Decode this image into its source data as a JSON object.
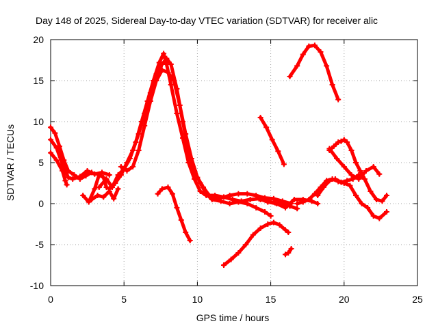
{
  "chart_data": {
    "type": "line",
    "title": "Day 148 of 2025, Sidereal Day-to-day VTEC variation (SDTVAR) for receiver alic",
    "xlabel": "GPS time / hours",
    "ylabel": "SDTVAR / TECUs",
    "xlim": [
      0,
      25
    ],
    "ylim": [
      -10,
      20
    ],
    "xticks": [
      0,
      5,
      10,
      15,
      20,
      25
    ],
    "yticks": [
      -10,
      -5,
      0,
      5,
      10,
      15,
      20
    ],
    "grid": true,
    "color": "#ff0000",
    "series": [
      {
        "x": [
          0.0,
          0.3,
          0.6,
          0.9,
          1.2,
          1.6,
          2.0,
          2.4,
          2.8
        ],
        "y": [
          9.3,
          8.6,
          7.0,
          5.3,
          4.0,
          3.5,
          3.0,
          3.4,
          3.8
        ]
      },
      {
        "x": [
          0.0,
          0.4,
          0.8,
          1.0,
          1.1
        ],
        "y": [
          6.2,
          5.3,
          4.0,
          2.8,
          2.3
        ]
      },
      {
        "x": [
          0.0,
          0.4,
          0.8,
          1.2,
          1.5,
          2.0,
          2.5,
          3.0,
          3.5,
          4.0
        ],
        "y": [
          7.8,
          6.8,
          4.8,
          3.2,
          3.0,
          3.3,
          4.0,
          3.6,
          3.8,
          3.5
        ]
      },
      {
        "x": [
          2.2,
          2.6,
          3.0,
          3.3,
          3.6,
          3.8
        ],
        "y": [
          1.0,
          0.2,
          1.8,
          3.5,
          3.2,
          2.0
        ]
      },
      {
        "x": [
          2.8,
          3.2,
          3.6,
          4.0,
          4.3,
          4.6
        ],
        "y": [
          0.5,
          1.0,
          0.8,
          1.5,
          0.6,
          1.8
        ]
      },
      {
        "x": [
          3.3,
          3.8,
          4.2,
          4.6,
          5.0,
          5.4,
          5.8,
          6.2,
          6.6,
          7.0,
          7.4,
          7.7,
          7.9,
          8.2,
          8.6,
          9.0,
          9.4,
          9.8,
          10.2,
          10.6,
          11.0,
          11.6,
          12.2,
          12.8,
          13.4,
          14.0,
          14.6,
          15.2,
          15.8,
          16.4
        ],
        "y": [
          2.0,
          3.0,
          2.0,
          3.5,
          4.2,
          5.5,
          7.5,
          10.0,
          12.5,
          15.0,
          17.2,
          18.3,
          17.0,
          14.5,
          11.0,
          8.0,
          5.0,
          3.0,
          1.5,
          1.0,
          0.8,
          0.7,
          1.0,
          1.2,
          1.2,
          1.0,
          0.7,
          0.6,
          0.3,
          0.0
        ]
      },
      {
        "x": [
          4.8,
          5.2,
          5.6,
          6.0,
          6.4,
          6.8,
          7.2,
          7.6,
          8.0,
          8.4,
          8.8,
          9.2,
          9.6,
          10.0,
          10.4,
          10.8,
          11.2,
          11.8,
          12.4,
          13.0,
          13.6,
          14.2,
          14.8,
          15.4,
          16.0,
          16.6,
          17.2,
          17.8,
          18.2
        ],
        "y": [
          4.5,
          4.0,
          4.5,
          6.5,
          9.5,
          12.5,
          15.0,
          16.3,
          16.0,
          15.0,
          12.0,
          8.5,
          5.5,
          3.2,
          2.0,
          1.0,
          1.0,
          0.8,
          0.5,
          0.3,
          0.5,
          0.6,
          0.2,
          0.0,
          -0.5,
          0.5,
          0.5,
          0.3,
          0.0
        ]
      },
      {
        "x": [
          4.0,
          4.4,
          4.8,
          5.2,
          5.6,
          6.0,
          6.4,
          6.8,
          7.2,
          7.6,
          7.9,
          8.2,
          8.6,
          9.0,
          9.4,
          9.8,
          10.2,
          10.6,
          11.0,
          11.6,
          12.2,
          12.8,
          13.4,
          14.0,
          14.6,
          15.0
        ],
        "y": [
          1.8,
          2.5,
          3.5,
          5.0,
          6.5,
          8.5,
          11.0,
          13.5,
          15.8,
          17.0,
          17.7,
          17.0,
          14.0,
          10.0,
          6.5,
          4.0,
          2.5,
          1.2,
          0.5,
          0.3,
          0.0,
          0.2,
          0.0,
          -0.5,
          -1.0,
          -1.5
        ]
      },
      {
        "x": [
          7.3,
          7.6,
          8.0,
          8.3,
          8.6,
          8.9,
          9.2,
          9.5
        ],
        "y": [
          1.2,
          1.8,
          2.0,
          1.2,
          -0.5,
          -2.0,
          -3.5,
          -4.5
        ]
      },
      {
        "x": [
          11.8,
          12.3,
          12.8,
          13.3,
          13.8,
          14.3,
          14.8,
          15.2,
          15.6,
          16.0,
          16.2
        ],
        "y": [
          -7.5,
          -6.8,
          -6.0,
          -5.0,
          -3.8,
          -3.0,
          -2.5,
          -2.3,
          -2.6,
          -3.2,
          -3.5
        ]
      },
      {
        "x": [
          14.3,
          14.7,
          15.1,
          15.5,
          15.9
        ],
        "y": [
          10.5,
          9.3,
          7.8,
          6.4,
          4.8
        ]
      },
      {
        "x": [
          16.0,
          16.2,
          16.4
        ],
        "y": [
          -6.2,
          -6.0,
          -5.5
        ]
      },
      {
        "x": [
          16.3,
          16.8,
          17.2,
          17.6,
          18.0,
          18.4,
          18.8,
          19.2,
          19.6
        ],
        "y": [
          15.5,
          16.8,
          18.2,
          19.2,
          19.3,
          18.5,
          16.8,
          14.5,
          12.7
        ]
      },
      {
        "x": [
          16.8,
          17.2,
          17.6,
          18.0,
          18.4,
          18.8,
          19.2,
          19.6,
          20.0,
          20.4,
          20.8,
          21.2,
          21.6,
          22.0,
          22.4,
          22.9
        ],
        "y": [
          0.0,
          0.2,
          0.5,
          1.2,
          2.0,
          2.8,
          3.0,
          2.7,
          2.5,
          2.2,
          1.0,
          0.0,
          -0.5,
          -1.5,
          -1.8,
          -1.0
        ]
      },
      {
        "x": [
          18.2,
          18.6,
          19.0,
          19.4,
          19.8,
          20.2,
          20.6,
          21.0,
          21.4,
          21.8,
          22.2,
          22.6,
          22.9
        ],
        "y": [
          1.0,
          2.0,
          2.8,
          3.0,
          2.6,
          2.8,
          3.0,
          3.5,
          3.0,
          1.5,
          0.5,
          0.3,
          1.0
        ]
      },
      {
        "x": [
          19.0,
          19.3,
          19.6,
          19.8,
          20.0,
          20.2,
          20.5,
          20.8,
          21.1,
          21.4
        ],
        "y": [
          6.5,
          7.0,
          7.5,
          7.6,
          7.8,
          7.5,
          6.5,
          5.0,
          4.0,
          3.0
        ]
      },
      {
        "x": [
          19.0,
          19.5,
          20.0,
          20.5,
          21.0,
          21.5,
          22.0,
          22.4
        ],
        "y": [
          6.7,
          5.5,
          4.5,
          3.5,
          3.0,
          4.0,
          4.5,
          3.6
        ]
      },
      {
        "x": [
          14.3,
          14.8,
          15.3,
          15.8,
          16.3,
          16.8
        ],
        "y": [
          0.5,
          0.3,
          0.1,
          0.0,
          -0.3,
          -0.6
        ]
      }
    ]
  }
}
